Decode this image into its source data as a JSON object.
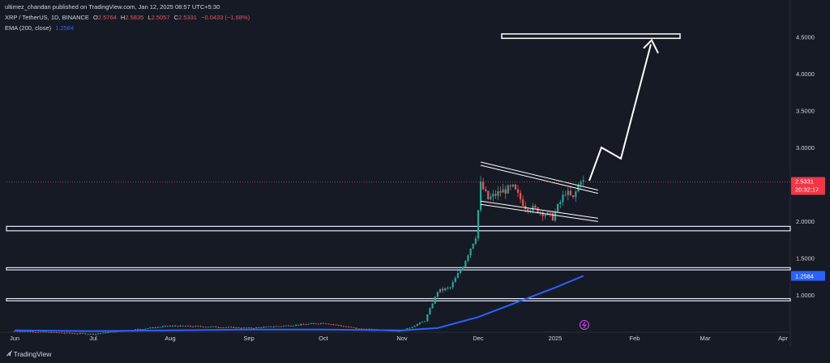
{
  "header": {
    "published_line": "ultimez_chandan published on TradingView.com, Jan 12, 2025 08:57 UTC+5:30",
    "symbol": "XRP / TetherUS, 1D, BINANCE",
    "ohlc": {
      "open_label": "O",
      "open": "2.5764",
      "high_label": "H",
      "high": "2.5835",
      "low_label": "L",
      "low": "2.5057",
      "close_label": "C",
      "close": "2.5331",
      "change": "−0.0433 (−1.68%)"
    },
    "ema_label": "EMA (200, close)",
    "ema_value": "1.2584"
  },
  "footer": {
    "brand": "TradingView",
    "logo_icon": "tradingview-logo-icon"
  },
  "colors": {
    "background": "#161a25",
    "up": "#26a69a",
    "down": "#ef5350",
    "ema": "#2962ff",
    "price_badge": "#f23645",
    "ema_badge": "#2962ff"
  },
  "chart_data": {
    "type": "candlestick",
    "title": "XRP / TetherUS, 1D, BINANCE",
    "xlabel": "",
    "ylabel": "",
    "y_ticks": [
      "4.5000",
      "4.0000",
      "3.5000",
      "3.0000",
      "2.0000",
      "1.5000",
      "1.0000"
    ],
    "x_ticks": [
      "Jun",
      "Jul",
      "Aug",
      "Sep",
      "Oct",
      "Nov",
      "Dec",
      "2025",
      "Feb",
      "Mar",
      "Apr"
    ],
    "last_price_label": "2.5331",
    "countdown_label": "20:32:17",
    "ema_price_label": "1.2584",
    "ylim": [
      0.5,
      4.85
    ],
    "grid": false,
    "series": [
      {
        "name": "XRP / TetherUS",
        "points": [
          [
            "2024-06-01",
            0.51
          ],
          [
            "2024-06-15",
            0.49
          ],
          [
            "2024-07-01",
            0.47
          ],
          [
            "2024-07-15",
            0.52
          ],
          [
            "2024-08-01",
            0.58
          ],
          [
            "2024-08-15",
            0.57
          ],
          [
            "2024-09-01",
            0.55
          ],
          [
            "2024-09-15",
            0.58
          ],
          [
            "2024-10-01",
            0.62
          ],
          [
            "2024-10-15",
            0.54
          ],
          [
            "2024-11-01",
            0.51
          ],
          [
            "2024-11-10",
            0.65
          ],
          [
            "2024-11-15",
            1.05
          ],
          [
            "2024-11-20",
            1.1
          ],
          [
            "2024-11-25",
            1.4
          ],
          [
            "2024-11-30",
            1.8
          ],
          [
            "2024-12-02",
            2.5
          ],
          [
            "2024-12-05",
            2.3
          ],
          [
            "2024-12-10",
            2.4
          ],
          [
            "2024-12-15",
            2.45
          ],
          [
            "2024-12-20",
            2.2
          ],
          [
            "2024-12-25",
            2.15
          ],
          [
            "2024-12-31",
            2.05
          ],
          [
            "2025-01-05",
            2.4
          ],
          [
            "2025-01-08",
            2.3
          ],
          [
            "2025-01-11",
            2.58
          ],
          [
            "2025-01-12",
            2.5331
          ]
        ]
      },
      {
        "name": "EMA (200, close)",
        "points": [
          [
            "2024-06-01",
            0.52
          ],
          [
            "2024-07-01",
            0.51
          ],
          [
            "2024-08-01",
            0.52
          ],
          [
            "2024-09-01",
            0.53
          ],
          [
            "2024-10-01",
            0.53
          ],
          [
            "2024-11-01",
            0.52
          ],
          [
            "2024-11-15",
            0.55
          ],
          [
            "2024-12-01",
            0.7
          ],
          [
            "2024-12-15",
            0.88
          ],
          [
            "2025-01-01",
            1.1
          ],
          [
            "2025-01-12",
            1.2584
          ]
        ]
      }
    ],
    "support_zones": [
      [
        1.87,
        1.93
      ],
      [
        1.34,
        1.37
      ],
      [
        0.92,
        0.95
      ]
    ],
    "target_zone": [
      4.48,
      4.54
    ],
    "channel": {
      "upper": [
        [
          "2024-12-02",
          2.78
        ],
        [
          "2025-01-12",
          2.4
        ]
      ],
      "lower": [
        [
          "2024-12-02",
          2.25
        ],
        [
          "2025-01-12",
          1.93
        ]
      ]
    },
    "projection_path": [
      [
        "2025-01-12",
        2.55
      ],
      [
        "2025-01-20",
        3.0
      ],
      [
        "2025-01-28",
        2.85
      ],
      [
        "2025-02-12",
        4.4
      ]
    ]
  }
}
